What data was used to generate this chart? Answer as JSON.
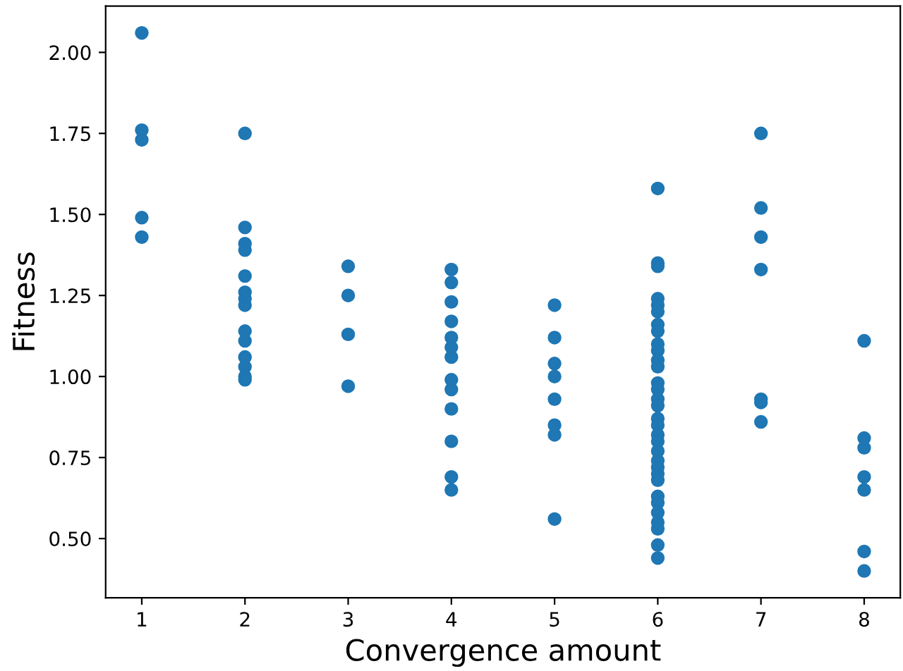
{
  "chart_data": {
    "type": "scatter",
    "xlabel": "Convergence amount",
    "ylabel": "Fitness",
    "marker": "circle",
    "grid": false,
    "legend": false,
    "xlim": [
      0.65,
      8.35
    ],
    "ylim": [
      0.317,
      2.143
    ],
    "xticks": [
      1,
      2,
      3,
      4,
      5,
      6,
      7,
      8
    ],
    "yticks": [
      {
        "value": 0.5,
        "label": "0.50"
      },
      {
        "value": 0.75,
        "label": "0.75"
      },
      {
        "value": 1.0,
        "label": "1.00"
      },
      {
        "value": 1.25,
        "label": "1.25"
      },
      {
        "value": 1.5,
        "label": "1.50"
      },
      {
        "value": 1.75,
        "label": "1.75"
      },
      {
        "value": 2.0,
        "label": "2.00"
      }
    ],
    "series": [
      {
        "color": "#1f77b4",
        "x": [
          1,
          1,
          1,
          1,
          1,
          2,
          2,
          2,
          2,
          2,
          2,
          2,
          2,
          2,
          2,
          2,
          2,
          2,
          2,
          3,
          3,
          3,
          3,
          4,
          4,
          4,
          4,
          4,
          4,
          4,
          4,
          4,
          4,
          4,
          4,
          4,
          5,
          5,
          5,
          5,
          5,
          5,
          5,
          5,
          6,
          6,
          6,
          6,
          6,
          6,
          6,
          6,
          6,
          6,
          6,
          6,
          6,
          6,
          6,
          6,
          6,
          6,
          6,
          6,
          6,
          6,
          6,
          6,
          6,
          6,
          6,
          6,
          6,
          6,
          6,
          6,
          7,
          7,
          7,
          7,
          7,
          7,
          7,
          8,
          8,
          8,
          8,
          8,
          8,
          8
        ],
        "values": [
          2.06,
          1.76,
          1.73,
          1.49,
          1.43,
          1.75,
          1.46,
          1.41,
          1.39,
          1.31,
          1.26,
          1.24,
          1.22,
          1.14,
          1.11,
          1.06,
          1.03,
          1.0,
          0.99,
          1.34,
          1.25,
          1.13,
          0.97,
          1.33,
          1.29,
          1.23,
          1.17,
          1.12,
          1.09,
          1.06,
          0.99,
          0.96,
          0.9,
          0.8,
          0.69,
          0.65,
          1.22,
          1.12,
          1.04,
          1.0,
          0.93,
          0.85,
          0.82,
          0.56,
          1.58,
          1.35,
          1.34,
          1.24,
          1.22,
          1.2,
          1.16,
          1.14,
          1.1,
          1.08,
          1.05,
          1.03,
          0.98,
          0.96,
          0.93,
          0.91,
          0.87,
          0.85,
          0.82,
          0.8,
          0.77,
          0.74,
          0.72,
          0.7,
          0.68,
          0.63,
          0.61,
          0.58,
          0.55,
          0.53,
          0.48,
          0.44,
          1.75,
          1.52,
          1.43,
          1.33,
          0.93,
          0.92,
          0.86,
          1.11,
          0.81,
          0.78,
          0.69,
          0.65,
          0.46,
          0.4
        ]
      }
    ]
  }
}
